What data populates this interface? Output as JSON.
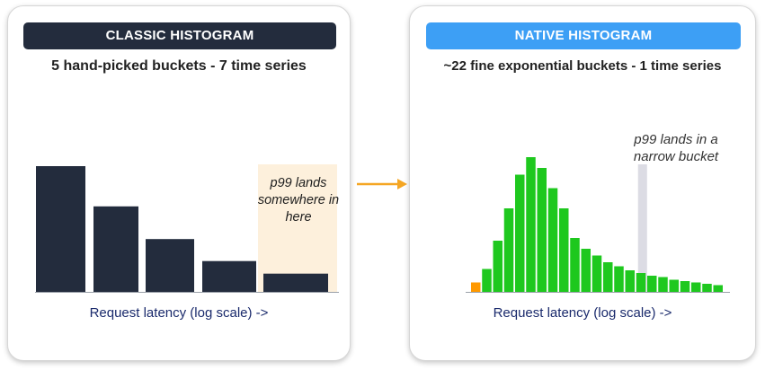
{
  "left_panel": {
    "header": "CLASSIC HISTOGRAM",
    "subtitle": "5 hand-picked buckets - 7 time series",
    "note": "p99 lands somewhere in here",
    "axis_caption": "Request latency (log scale) ->"
  },
  "right_panel": {
    "header": "NATIVE HISTOGRAM",
    "subtitle": "~22 fine exponential buckets - 1 time series",
    "note": "p99 lands in a narrow bucket",
    "axis_caption": "Request latency (log scale) ->"
  },
  "colors": {
    "classic_header_bg": "#232c3d",
    "native_header_bg": "#3d9ff5",
    "classic_bar": "#232c3d",
    "p99_region_fill": "#fdf0dc",
    "native_bar": "#1ec81e",
    "native_first_bar": "#ff9900",
    "p99_marker": "#dcdce4",
    "arrow": "#f5a623",
    "caption_text": "#1a2a6c"
  },
  "chart_data": [
    {
      "type": "bar",
      "panel": "classic",
      "values": [
        1.0,
        0.68,
        0.42,
        0.245,
        0.145
      ],
      "highlighted_bucket_index": 4
    },
    {
      "type": "bar",
      "panel": "native",
      "values": [
        0.07,
        0.17,
        0.38,
        0.62,
        0.87,
        1.0,
        0.92,
        0.77,
        0.62,
        0.4,
        0.32,
        0.27,
        0.22,
        0.19,
        0.16,
        0.14,
        0.12,
        0.11,
        0.09,
        0.08,
        0.07,
        0.06,
        0.05
      ],
      "first_bar_highlighted": true,
      "p99_bucket_index": 15
    }
  ]
}
